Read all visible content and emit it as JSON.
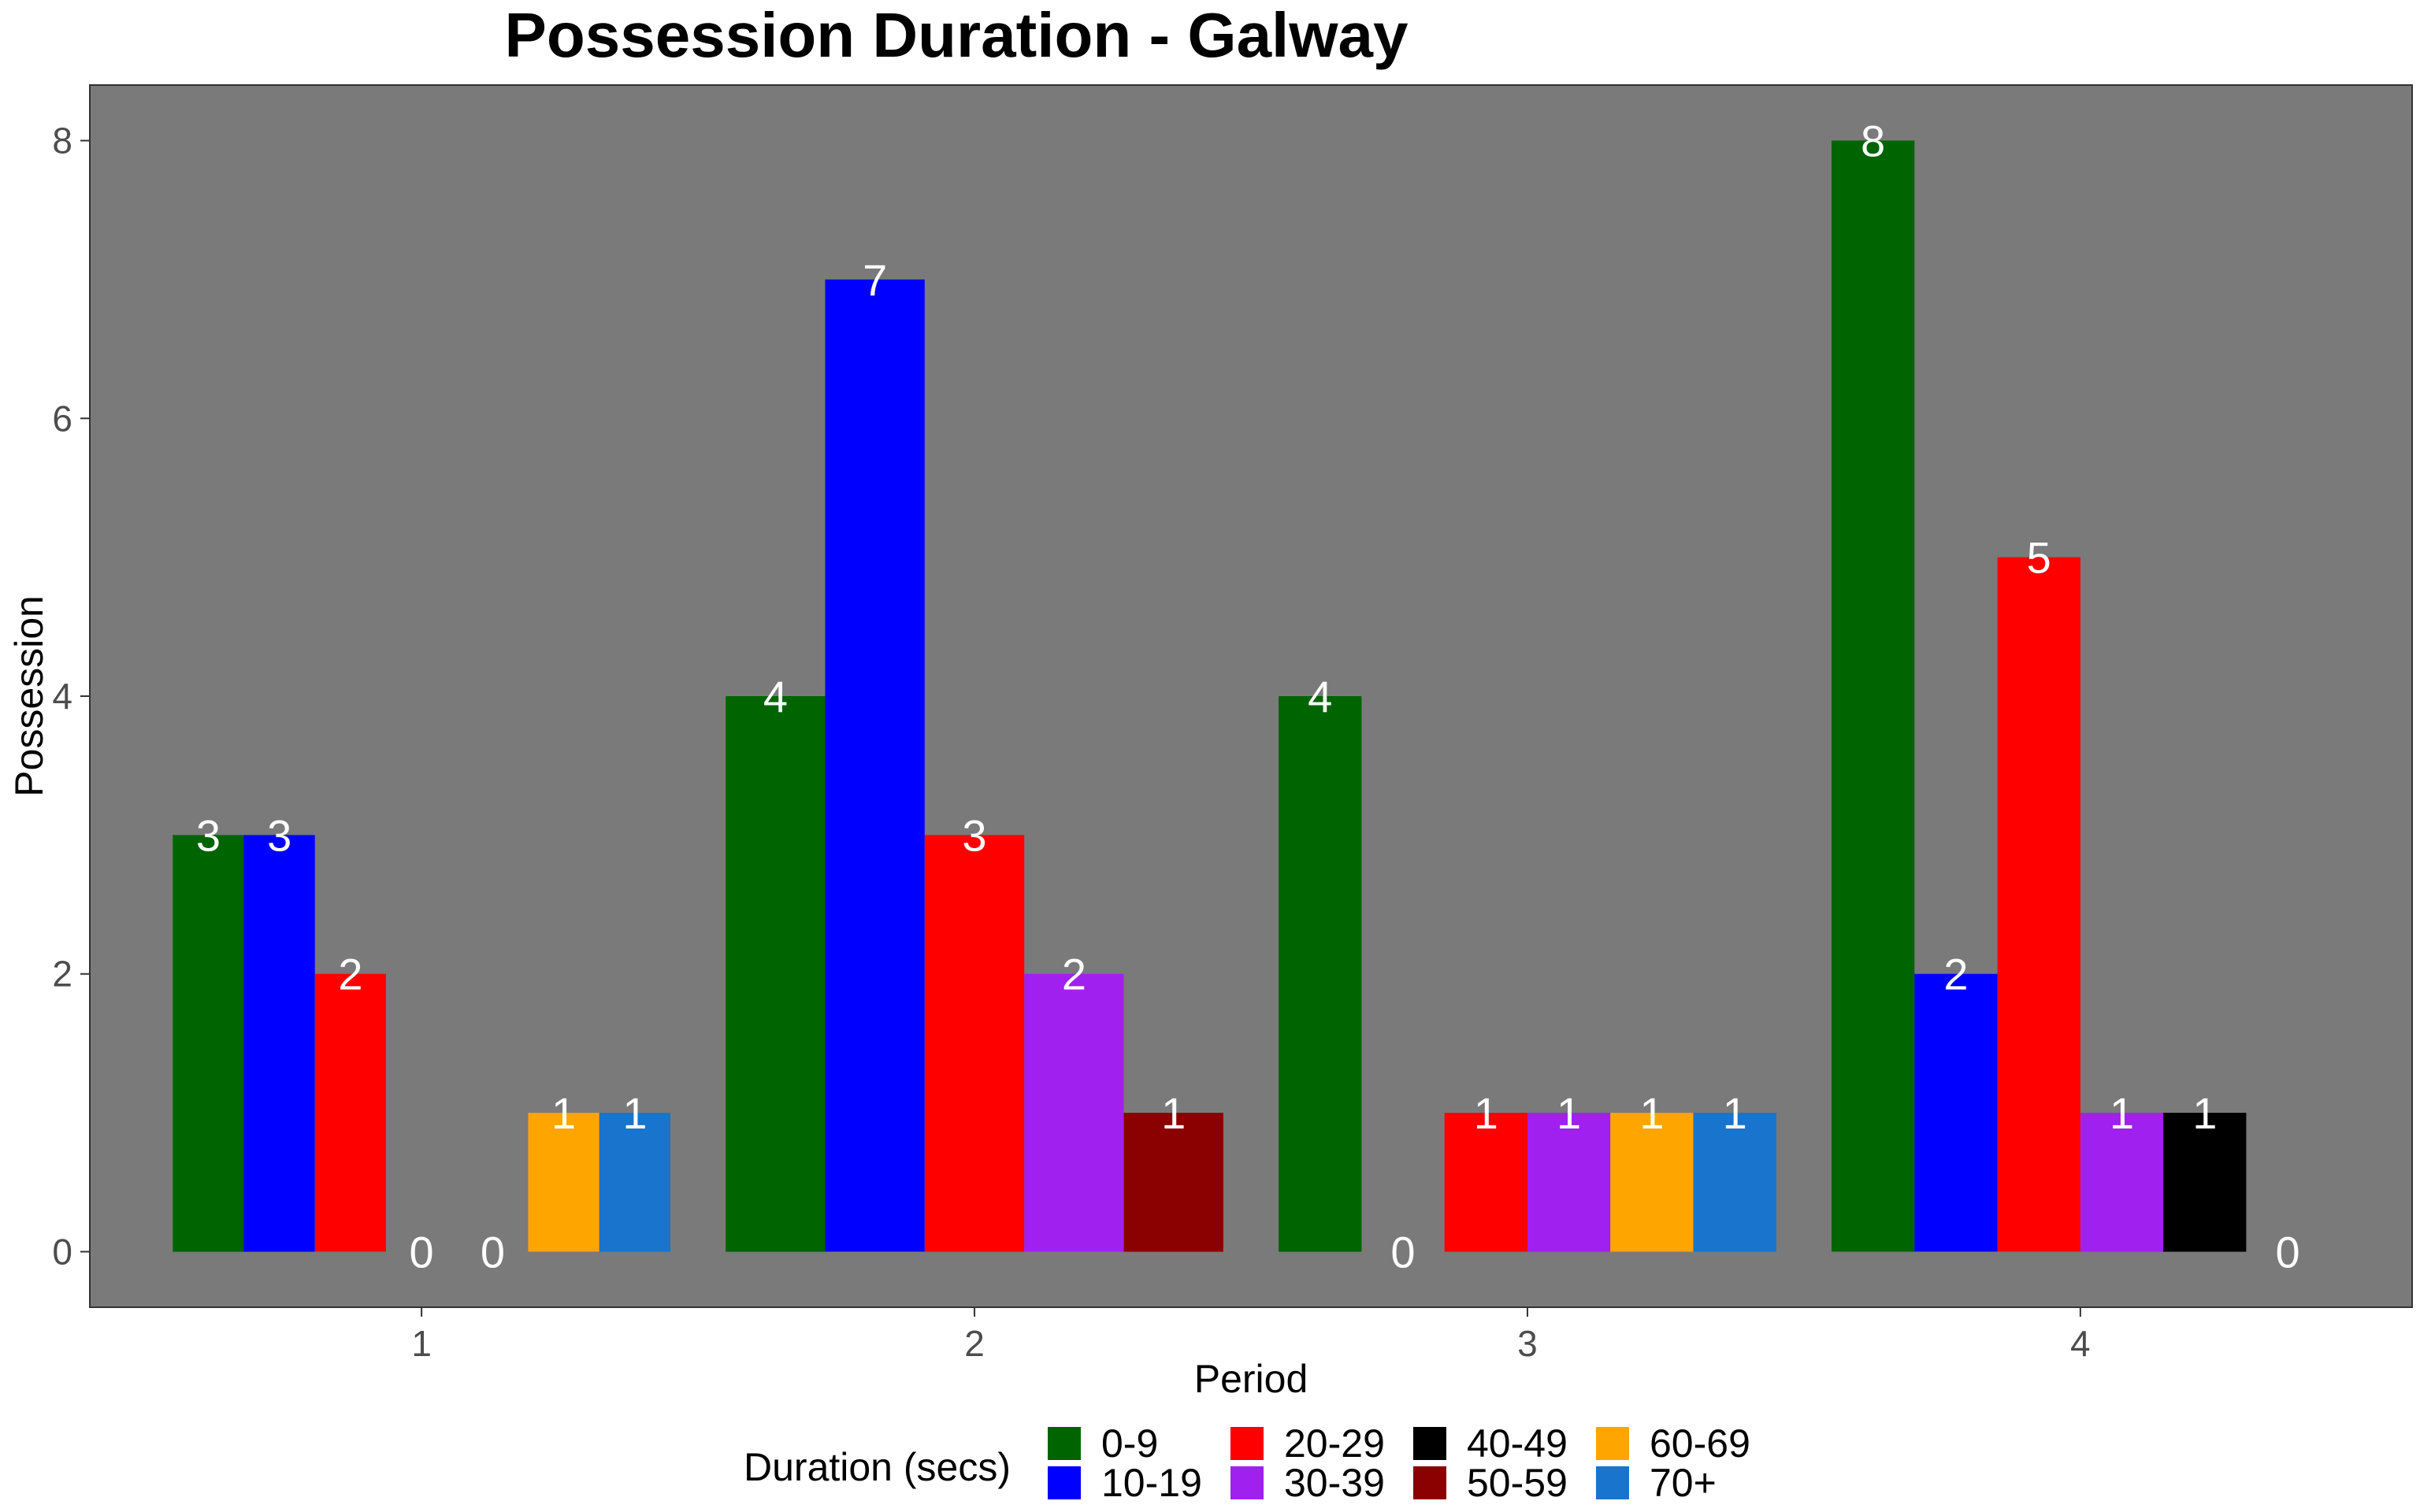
{
  "chart_data": {
    "type": "bar",
    "title": "Possession Duration - Galway",
    "xlabel": "Period",
    "ylabel": "Possession",
    "categories": [
      "1",
      "2",
      "3",
      "4"
    ],
    "ylim": [
      -0.4,
      8.4
    ],
    "yticks": [
      0,
      2,
      4,
      6,
      8
    ],
    "grid": false,
    "panel_background": "#7a7a7a",
    "legend": {
      "title": "Duration (secs)",
      "position": "bottom"
    },
    "series": [
      {
        "name": "0-9",
        "color": "#006400",
        "values": [
          3,
          4,
          4,
          8
        ]
      },
      {
        "name": "10-19",
        "color": "#0000ff",
        "values": [
          3,
          7,
          0,
          2
        ]
      },
      {
        "name": "20-29",
        "color": "#ff0000",
        "values": [
          2,
          3,
          1,
          5
        ]
      },
      {
        "name": "30-39",
        "color": "#a020f0",
        "values": [
          0,
          2,
          1,
          1
        ]
      },
      {
        "name": "40-49",
        "color": "#000000",
        "values": [
          null,
          null,
          null,
          1
        ]
      },
      {
        "name": "50-59",
        "color": "#8b0000",
        "values": [
          0,
          1,
          null,
          0
        ]
      },
      {
        "name": "60-69",
        "color": "#ffa500",
        "values": [
          1,
          null,
          1,
          null
        ]
      },
      {
        "name": "70+",
        "color": "#1874cd",
        "values": [
          1,
          null,
          1,
          null
        ]
      }
    ]
  }
}
